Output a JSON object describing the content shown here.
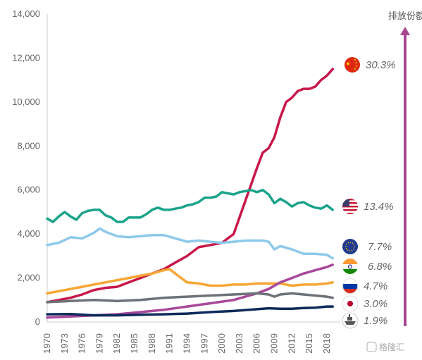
{
  "chart_data": {
    "type": "line",
    "title": "",
    "xlabel": "",
    "ylabel": "",
    "side_title": "排放份额",
    "watermark": "格隆汇",
    "ylim": [
      0,
      14000
    ],
    "xlim": [
      1970,
      2019
    ],
    "y_ticks": [
      "0",
      "2,000",
      "4,000",
      "6,000",
      "8,000",
      "10,000",
      "12,000",
      "14,000"
    ],
    "x_ticks": [
      "1970",
      "1973",
      "1976",
      "1979",
      "1982",
      "1985",
      "1988",
      "1991",
      "1994",
      "1997",
      "2000",
      "2003",
      "2006",
      "2009",
      "2012",
      "2015",
      "2018"
    ],
    "grid": false,
    "series": [
      {
        "flag": "china-flag-icon",
        "share": "30.3%",
        "color": "#c8174a",
        "x": [
          1970,
          1972,
          1974,
          1976,
          1978,
          1980,
          1982,
          1984,
          1986,
          1988,
          1990,
          1992,
          1994,
          1996,
          1998,
          2000,
          2002,
          2004,
          2006,
          2007,
          2008,
          2009,
          2010,
          2011,
          2012,
          2013,
          2014,
          2015,
          2016,
          2017,
          2018,
          2019
        ],
        "y": [
          900,
          1000,
          1100,
          1250,
          1450,
          1550,
          1600,
          1800,
          2000,
          2200,
          2400,
          2700,
          3000,
          3400,
          3500,
          3600,
          4000,
          5500,
          7000,
          7700,
          7900,
          8400,
          9300,
          10000,
          10200,
          10500,
          10600,
          10600,
          10700,
          11000,
          11200,
          11500
        ]
      },
      {
        "flag": "usa-flag-icon",
        "share": "13.4%",
        "color": "#1aa38a",
        "x": [
          1970,
          1971,
          1972,
          1973,
          1974,
          1975,
          1976,
          1977,
          1978,
          1979,
          1980,
          1981,
          1982,
          1983,
          1984,
          1985,
          1986,
          1987,
          1988,
          1989,
          1990,
          1991,
          1992,
          1993,
          1994,
          1995,
          1996,
          1997,
          1998,
          1999,
          2000,
          2001,
          2002,
          2003,
          2004,
          2005,
          2006,
          2007,
          2008,
          2009,
          2010,
          2011,
          2012,
          2013,
          2014,
          2015,
          2016,
          2017,
          2018,
          2019
        ],
        "y": [
          4700,
          4550,
          4800,
          5000,
          4800,
          4650,
          4950,
          5050,
          5100,
          5100,
          4850,
          4750,
          4550,
          4550,
          4750,
          4750,
          4750,
          4900,
          5100,
          5200,
          5100,
          5100,
          5150,
          5200,
          5300,
          5350,
          5450,
          5650,
          5650,
          5700,
          5900,
          5850,
          5800,
          5900,
          5950,
          6000,
          5900,
          6000,
          5800,
          5400,
          5600,
          5450,
          5250,
          5400,
          5450,
          5300,
          5200,
          5150,
          5300,
          5100
        ]
      },
      {
        "flag": "eu-flag-icon",
        "share": "7.7%",
        "color": "#8ec9ea",
        "x": [
          1970,
          1972,
          1974,
          1976,
          1978,
          1979,
          1980,
          1982,
          1984,
          1986,
          1988,
          1990,
          1992,
          1994,
          1996,
          1998,
          2000,
          2002,
          2004,
          2006,
          2007,
          2008,
          2009,
          2010,
          2012,
          2014,
          2016,
          2018,
          2019
        ],
        "y": [
          3500,
          3600,
          3850,
          3800,
          4050,
          4250,
          4100,
          3900,
          3850,
          3900,
          3950,
          3950,
          3800,
          3650,
          3700,
          3650,
          3600,
          3650,
          3700,
          3700,
          3700,
          3650,
          3300,
          3450,
          3300,
          3100,
          3100,
          3050,
          2900
        ]
      },
      {
        "flag": "india-flag-icon",
        "share": "6.8%",
        "color": "#f6a634",
        "x": [
          1970,
          1972,
          1974,
          1976,
          1978,
          1980,
          1982,
          1984,
          1986,
          1988,
          1990,
          1991,
          1992,
          1994,
          1996,
          1998,
          2000,
          2002,
          2004,
          2006,
          2008,
          2010,
          2012,
          2014,
          2016,
          2018,
          2019
        ],
        "y": [
          1300,
          1400,
          1500,
          1600,
          1700,
          1800,
          1900,
          2000,
          2100,
          2200,
          2350,
          2400,
          2200,
          1800,
          1750,
          1650,
          1650,
          1700,
          1700,
          1750,
          1750,
          1750,
          1650,
          1700,
          1700,
          1750,
          1800
        ]
      },
      {
        "flag": "russia-flag-icon",
        "share": "4.7%",
        "color": "#a8479a",
        "x": [
          1970,
          1974,
          1978,
          1982,
          1986,
          1990,
          1994,
          1998,
          2002,
          2004,
          2006,
          2008,
          2010,
          2012,
          2014,
          2016,
          2018,
          2019
        ],
        "y": [
          200,
          250,
          300,
          350,
          450,
          550,
          700,
          850,
          1000,
          1150,
          1300,
          1500,
          1800,
          2000,
          2200,
          2350,
          2500,
          2600
        ]
      },
      {
        "flag": "japan-flag-icon",
        "share": "3.0%",
        "color": "#6c7278",
        "x": [
          1970,
          1974,
          1978,
          1982,
          1986,
          1990,
          1994,
          1998,
          2002,
          2006,
          2008,
          2009,
          2010,
          2012,
          2014,
          2016,
          2018,
          2019
        ],
        "y": [
          900,
          950,
          1000,
          950,
          1000,
          1100,
          1150,
          1200,
          1250,
          1300,
          1250,
          1150,
          1250,
          1300,
          1250,
          1200,
          1150,
          1100
        ]
      },
      {
        "flag": "ship-icon",
        "share": "1.9%",
        "color": "#0d2a5a",
        "x": [
          1970,
          1974,
          1978,
          1982,
          1986,
          1990,
          1994,
          1998,
          2002,
          2006,
          2008,
          2010,
          2012,
          2014,
          2016,
          2018,
          2019
        ],
        "y": [
          350,
          360,
          300,
          300,
          330,
          350,
          380,
          450,
          500,
          580,
          620,
          600,
          600,
          630,
          650,
          700,
          700
        ]
      }
    ]
  }
}
